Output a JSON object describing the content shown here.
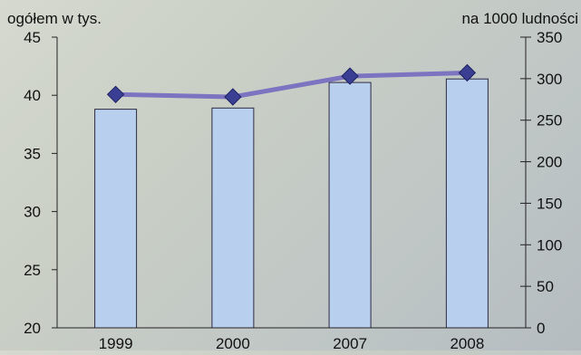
{
  "chart_data": {
    "type": "bar+line",
    "categories": [
      "1999",
      "2000",
      "2007",
      "2008"
    ],
    "series": [
      {
        "type": "bar",
        "axis": "left",
        "values": [
          38.8,
          38.9,
          41.1,
          41.4
        ],
        "color": "#b9cfee",
        "edge_color": "#2c2c44"
      },
      {
        "type": "line",
        "axis": "right",
        "values": [
          281,
          278,
          303,
          307
        ],
        "color": "#7c74c0",
        "marker_color": "#3a3f94"
      }
    ],
    "left_axis": {
      "label": "ogółem w tys.",
      "ylim": [
        20,
        45
      ],
      "ticks": [
        20,
        25,
        30,
        35,
        40,
        45
      ]
    },
    "right_axis": {
      "label": "na 1000 ludności",
      "ylim": [
        0,
        350
      ],
      "ticks": [
        0,
        50,
        100,
        150,
        200,
        250,
        300,
        350
      ]
    },
    "grid": false,
    "legend": "none"
  }
}
